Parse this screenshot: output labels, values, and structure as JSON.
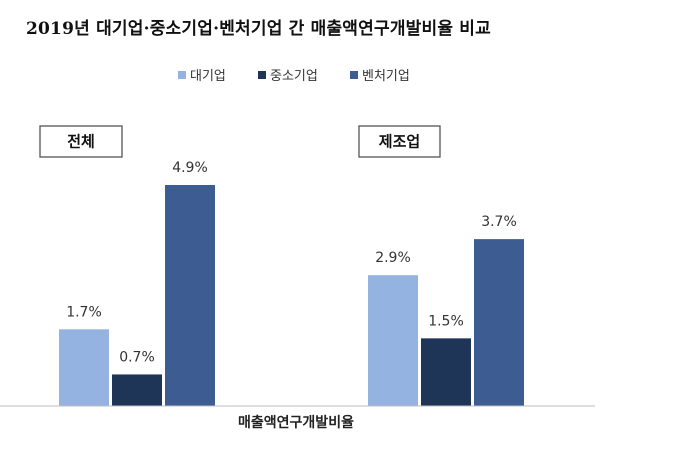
{
  "title": "2019년 대기업·중소기업·벤처기업 간 매출액연구개발비율 비교",
  "chart_data": {
    "type": "bar",
    "categories": [
      "전체",
      "제조업"
    ],
    "series": [
      {
        "name": "대기업",
        "values": [
          1.7,
          2.9
        ],
        "labels": [
          "1.7%",
          "2.9%"
        ],
        "color": "#95b3e0"
      },
      {
        "name": "중소기업",
        "values": [
          0.7,
          1.5
        ],
        "labels": [
          "0.7%",
          "1.5%"
        ],
        "color": "#1f3558"
      },
      {
        "name": "벤처기업",
        "values": [
          4.9,
          3.7
        ],
        "labels": [
          "4.9%",
          "3.7%"
        ],
        "color": "#3d5c91"
      }
    ],
    "xlabel": "매출액연구개발비율",
    "ylim": [
      0,
      5.5
    ],
    "legend_position": "top-center",
    "grid": false
  }
}
